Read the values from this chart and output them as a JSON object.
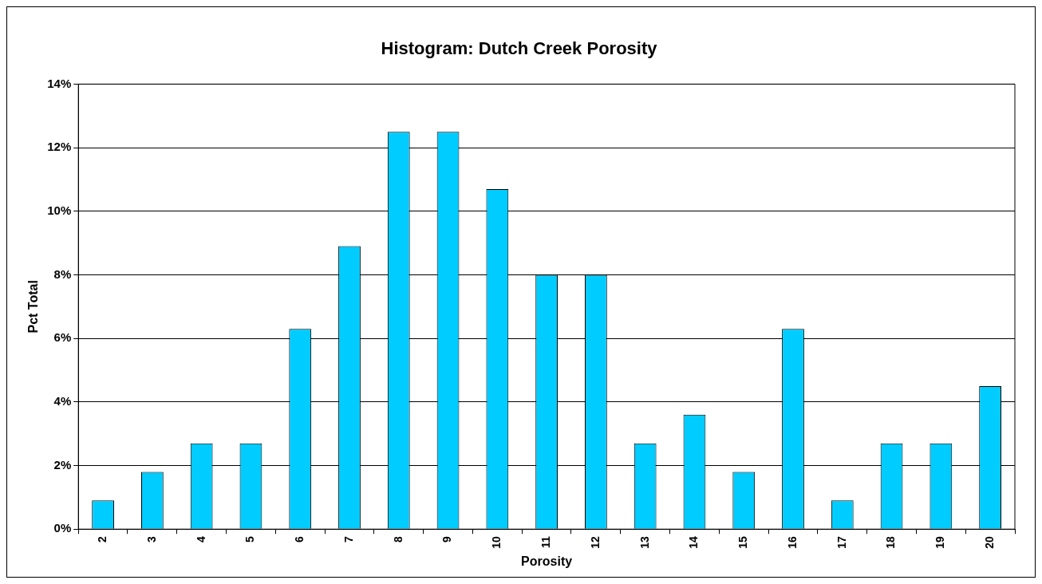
{
  "chart_data": {
    "type": "bar",
    "title": "Histogram: Dutch Creek Porosity",
    "xlabel": "Porosity",
    "ylabel": "Pct Total",
    "categories": [
      "2",
      "3",
      "4",
      "5",
      "6",
      "7",
      "8",
      "9",
      "10",
      "11",
      "12",
      "13",
      "14",
      "15",
      "16",
      "17",
      "18",
      "19",
      "20"
    ],
    "values": [
      0.9,
      1.8,
      2.7,
      2.7,
      6.3,
      8.9,
      12.5,
      12.5,
      10.7,
      8.0,
      8.0,
      2.7,
      3.6,
      1.8,
      6.3,
      0.9,
      2.7,
      2.7,
      4.5
    ],
    "color": "#00ccff",
    "ylim": [
      0,
      14
    ],
    "yticks": [
      {
        "value": 0,
        "label": "0%"
      },
      {
        "value": 2,
        "label": "2%"
      },
      {
        "value": 4,
        "label": "4%"
      },
      {
        "value": 6,
        "label": "6%"
      },
      {
        "value": 8,
        "label": "8%"
      },
      {
        "value": 10,
        "label": "10%"
      },
      {
        "value": 12,
        "label": "12%"
      },
      {
        "value": 14,
        "label": "14%"
      }
    ],
    "grid": "y",
    "legend": false
  }
}
